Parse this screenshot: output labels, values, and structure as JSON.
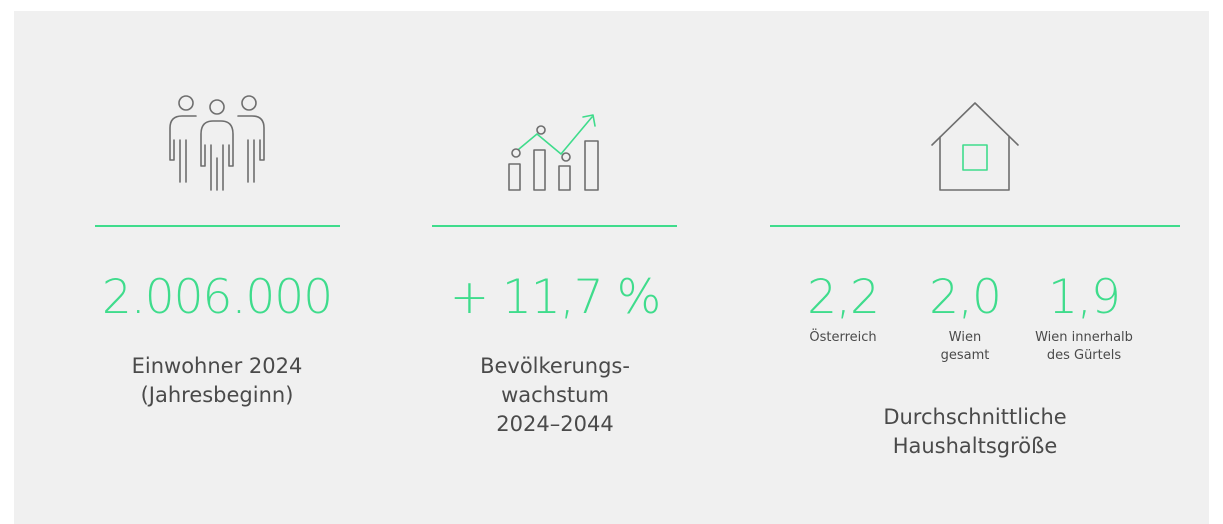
{
  "stats": [
    {
      "value": "2.006.000",
      "label": [
        "Einwohner 2024",
        "(Jahresbeginn)"
      ]
    },
    {
      "value": "+ 11,7 %",
      "label": [
        "Bevölkerungs-",
        "wachstum",
        "2024–2044"
      ]
    },
    {
      "households": [
        {
          "value": "2,2",
          "label": [
            "Österreich"
          ]
        },
        {
          "value": "2,0",
          "label": [
            "Wien",
            "gesamt"
          ]
        },
        {
          "value": "1,9",
          "label": [
            "Wien innerhalb",
            "des Gürtels"
          ]
        }
      ],
      "label": [
        "Durchschnittliche",
        "Haushaltsgröße"
      ]
    }
  ]
}
